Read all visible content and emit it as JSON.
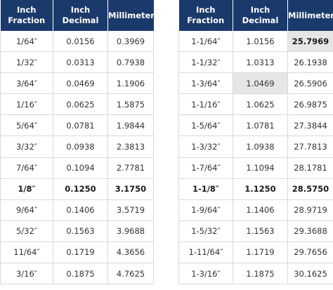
{
  "headers": [
    "Inch\nFraction",
    "Inch\nDecimal",
    "Millimeter"
  ],
  "left_rows": [
    {
      "fraction": "1/64″",
      "decimal": "0.0156",
      "mm": "0.3969",
      "bold": false
    },
    {
      "fraction": "1/32″",
      "decimal": "0.0313",
      "mm": "0.7938",
      "bold": false
    },
    {
      "fraction": "3/64″",
      "decimal": "0.0469",
      "mm": "1.1906",
      "bold": false
    },
    {
      "fraction": "1/16″",
      "decimal": "0.0625",
      "mm": "1.5875",
      "bold": false
    },
    {
      "fraction": "5/64″",
      "decimal": "0.0781",
      "mm": "1.9844",
      "bold": false
    },
    {
      "fraction": "3/32″",
      "decimal": "0.0938",
      "mm": "2.3813",
      "bold": false
    },
    {
      "fraction": "7/64″",
      "decimal": "0.1094",
      "mm": "2.7781",
      "bold": false
    },
    {
      "fraction": "1/8″",
      "decimal": "0.1250",
      "mm": "3.1750",
      "bold": true
    },
    {
      "fraction": "9/64″",
      "decimal": "0.1406",
      "mm": "3.5719",
      "bold": false
    },
    {
      "fraction": "5/32″",
      "decimal": "0.1563",
      "mm": "3.9688",
      "bold": false
    },
    {
      "fraction": "11/64″",
      "decimal": "0.1719",
      "mm": "4.3656",
      "bold": false
    },
    {
      "fraction": "3/16″",
      "decimal": "0.1875",
      "mm": "4.7625",
      "bold": false
    }
  ],
  "right_rows": [
    {
      "fraction": "1-1/64″",
      "decimal": "1.0156",
      "mm": "25.7969",
      "bold": false
    },
    {
      "fraction": "1-1/32″",
      "decimal": "1.0313",
      "mm": "26.1938",
      "bold": false
    },
    {
      "fraction": "1-3/64″",
      "decimal": "1.0469",
      "mm": "26.5906",
      "bold": false
    },
    {
      "fraction": "1-1/16″",
      "decimal": "1.0625",
      "mm": "26.9875",
      "bold": false
    },
    {
      "fraction": "1-5/64″",
      "decimal": "1.0781",
      "mm": "27.3844",
      "bold": false
    },
    {
      "fraction": "1-3/32″",
      "decimal": "1.0938",
      "mm": "27.7813",
      "bold": false
    },
    {
      "fraction": "1-7/64″",
      "decimal": "1.1094",
      "mm": "28.1781",
      "bold": false
    },
    {
      "fraction": "1-1/8″",
      "decimal": "1.1250",
      "mm": "28.5750",
      "bold": true
    },
    {
      "fraction": "1-9/64″",
      "decimal": "1.1406",
      "mm": "28.9719",
      "bold": false
    },
    {
      "fraction": "1-5/32″",
      "decimal": "1.1563",
      "mm": "29.3688",
      "bold": false
    },
    {
      "fraction": "1-11/64″",
      "decimal": "1.1719",
      "mm": "29.7656",
      "bold": false
    },
    {
      "fraction": "1-3/16″",
      "decimal": "1.1875",
      "mm": "30.1625",
      "bold": false
    }
  ],
  "colors": {
    "header_bg": "#1a3a6b",
    "header_text": "#ffffff",
    "highlight_bg": "#e6e6e6",
    "border": "#d9d9d9"
  }
}
